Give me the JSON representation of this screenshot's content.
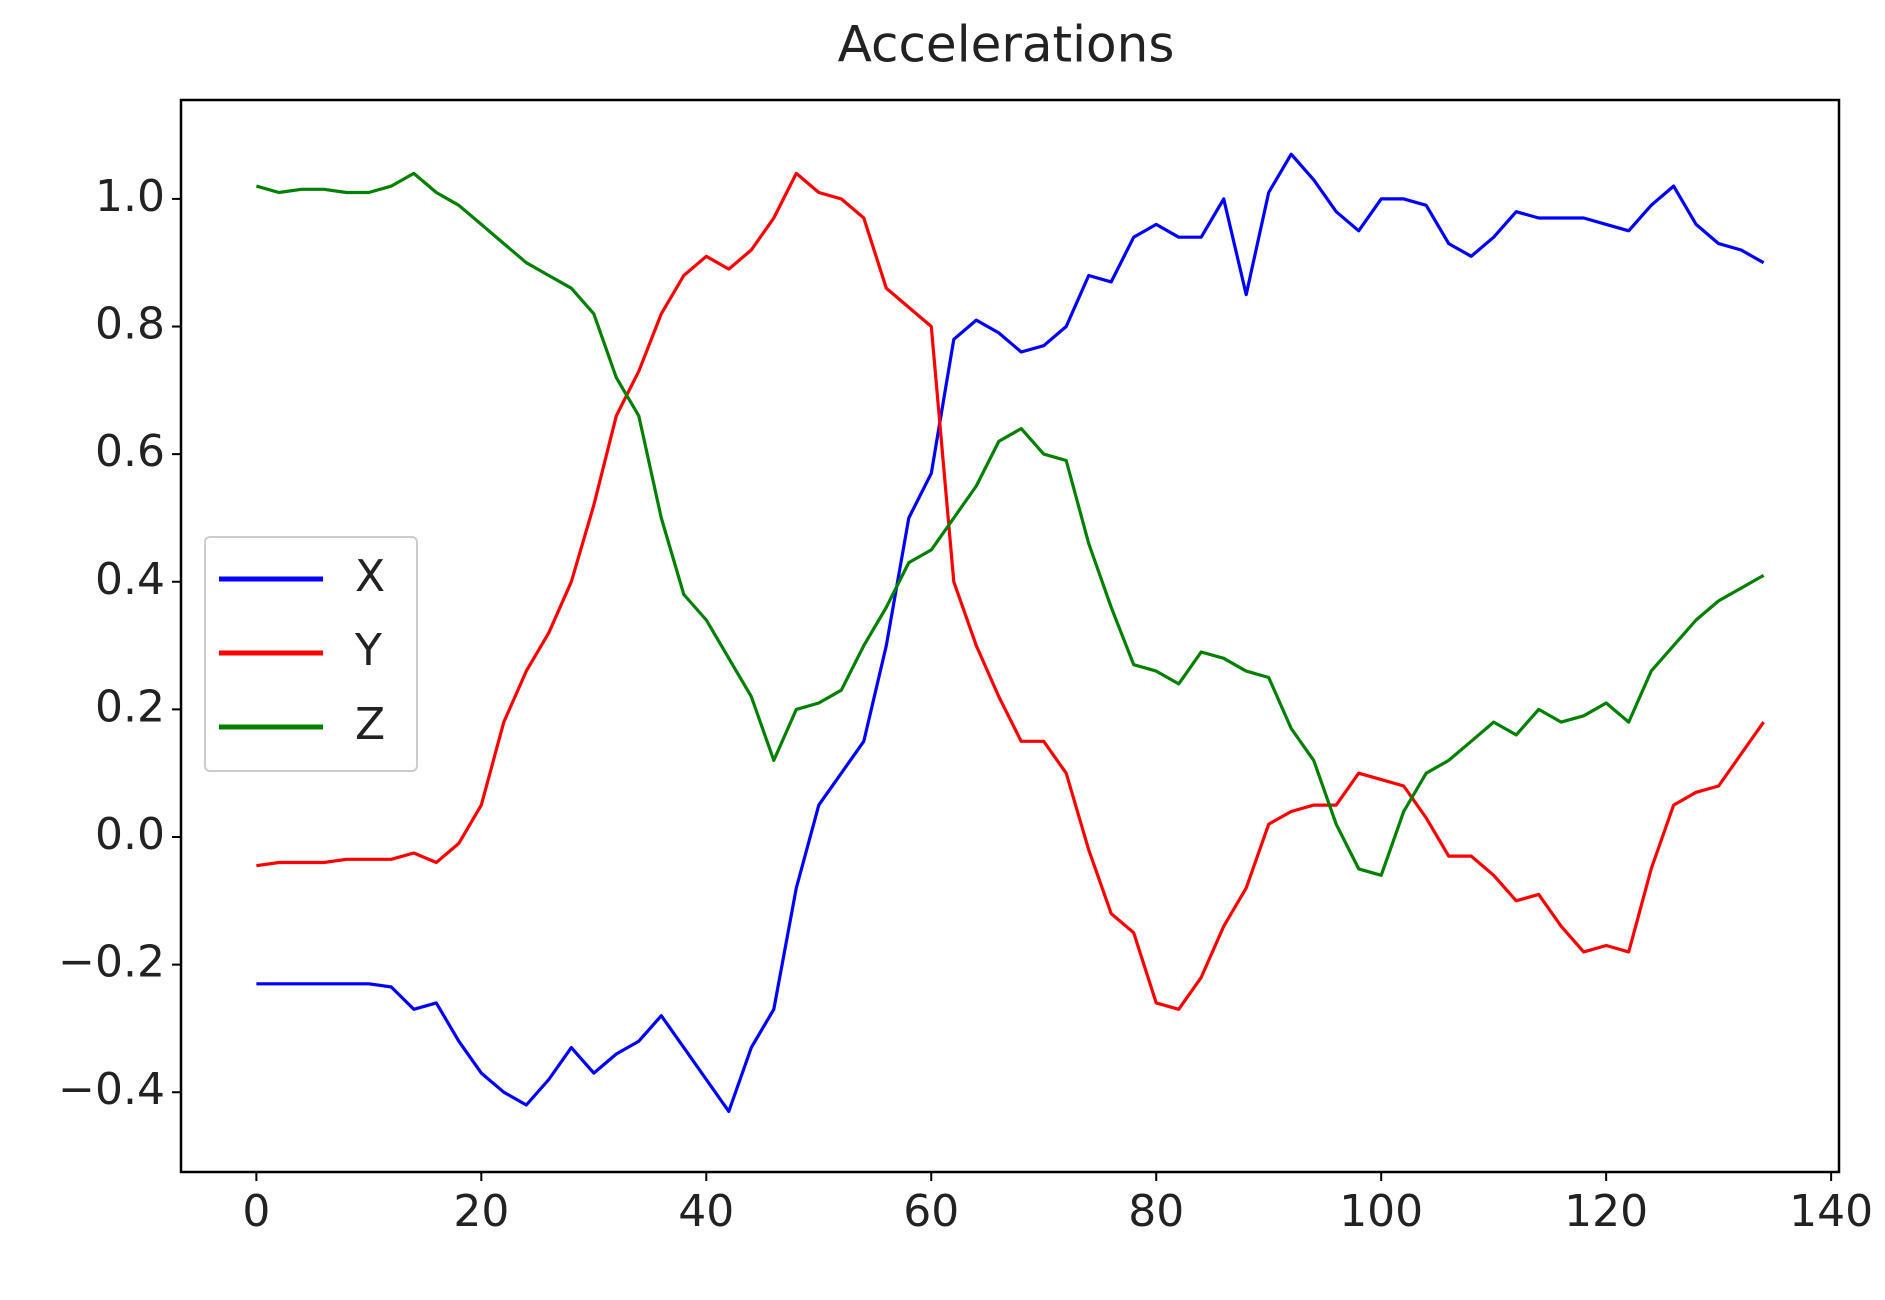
{
  "chart_data": {
    "type": "line",
    "title": "Accelerations",
    "x": [
      0,
      2,
      4,
      6,
      8,
      10,
      12,
      14,
      16,
      18,
      20,
      22,
      24,
      26,
      28,
      30,
      32,
      34,
      36,
      38,
      40,
      42,
      44,
      46,
      48,
      50,
      52,
      54,
      56,
      58,
      60,
      62,
      64,
      66,
      68,
      70,
      72,
      74,
      76,
      78,
      80,
      82,
      84,
      86,
      88,
      90,
      92,
      94,
      96,
      98,
      100,
      102,
      104,
      106,
      108,
      110,
      112,
      114,
      116,
      118,
      120,
      122,
      124,
      126,
      128,
      130,
      132,
      134
    ],
    "series": [
      {
        "name": "X",
        "color": "#0000ff",
        "values": [
          -0.23,
          -0.23,
          -0.23,
          -0.23,
          -0.23,
          -0.23,
          -0.235,
          -0.27,
          -0.26,
          -0.32,
          -0.37,
          -0.4,
          -0.42,
          -0.38,
          -0.33,
          -0.37,
          -0.34,
          -0.32,
          -0.28,
          -0.33,
          -0.38,
          -0.43,
          -0.33,
          -0.27,
          -0.08,
          0.05,
          0.1,
          0.15,
          0.3,
          0.5,
          0.57,
          0.78,
          0.81,
          0.79,
          0.76,
          0.77,
          0.8,
          0.88,
          0.87,
          0.94,
          0.96,
          0.94,
          0.94,
          1.0,
          0.85,
          1.01,
          1.07,
          1.03,
          0.98,
          0.95,
          1.0,
          1.0,
          0.99,
          0.93,
          0.91,
          0.94,
          0.98,
          0.97,
          0.97,
          0.97,
          0.96,
          0.95,
          0.99,
          1.02,
          0.96,
          0.93,
          0.92,
          0.9
        ]
      },
      {
        "name": "Y",
        "color": "#ff0000",
        "values": [
          -0.045,
          -0.04,
          -0.04,
          -0.04,
          -0.035,
          -0.035,
          -0.035,
          -0.025,
          -0.04,
          -0.01,
          0.05,
          0.18,
          0.26,
          0.32,
          0.4,
          0.52,
          0.66,
          0.73,
          0.82,
          0.88,
          0.91,
          0.89,
          0.92,
          0.97,
          1.04,
          1.01,
          1.0,
          0.97,
          0.86,
          0.83,
          0.8,
          0.4,
          0.3,
          0.22,
          0.15,
          0.15,
          0.1,
          -0.02,
          -0.12,
          -0.15,
          -0.26,
          -0.27,
          -0.22,
          -0.14,
          -0.08,
          0.02,
          0.04,
          0.05,
          0.05,
          0.1,
          0.09,
          0.08,
          0.03,
          -0.03,
          -0.03,
          -0.06,
          -0.1,
          -0.09,
          -0.14,
          -0.18,
          -0.17,
          -0.18,
          -0.05,
          0.05,
          0.07,
          0.08,
          0.13,
          0.18
        ]
      },
      {
        "name": "Z",
        "color": "#008000",
        "values": [
          1.02,
          1.01,
          1.015,
          1.015,
          1.01,
          1.01,
          1.02,
          1.04,
          1.01,
          0.99,
          0.96,
          0.93,
          0.9,
          0.88,
          0.86,
          0.82,
          0.72,
          0.66,
          0.5,
          0.38,
          0.34,
          0.28,
          0.22,
          0.12,
          0.2,
          0.21,
          0.23,
          0.3,
          0.36,
          0.43,
          0.45,
          0.5,
          0.55,
          0.62,
          0.64,
          0.6,
          0.59,
          0.46,
          0.36,
          0.27,
          0.26,
          0.24,
          0.29,
          0.28,
          0.26,
          0.25,
          0.17,
          0.12,
          0.02,
          -0.05,
          -0.06,
          0.04,
          0.1,
          0.12,
          0.15,
          0.18,
          0.16,
          0.2,
          0.18,
          0.19,
          0.21,
          0.18,
          0.26,
          0.3,
          0.34,
          0.37,
          0.39,
          0.41
        ]
      }
    ],
    "xlim": [
      -6.7,
      140.7
    ],
    "xticks": [
      0,
      20,
      40,
      60,
      80,
      100,
      120,
      140
    ],
    "ylim": [
      -0.525,
      1.155
    ],
    "yticks": [
      {
        "value": -0.4,
        "label": "−0.4"
      },
      {
        "value": -0.2,
        "label": "−0.2"
      },
      {
        "value": 0,
        "label": "0.0"
      },
      0.2,
      0.4,
      0.6,
      0.8,
      {
        "value": 1,
        "label": "1.0"
      }
    ],
    "legend": "center left"
  }
}
